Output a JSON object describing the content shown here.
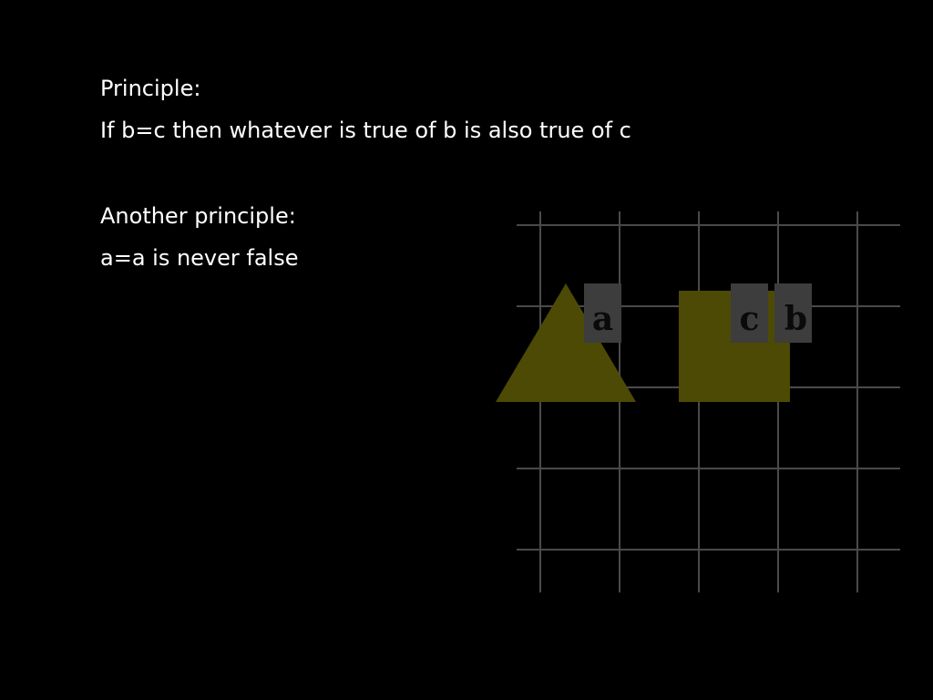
{
  "slide": {
    "lines": [
      "Principle:",
      "If b=c then whatever is true of b is also true of c",
      "Another principle:",
      "a=a is never false"
    ]
  },
  "diagram": {
    "grid_color": "#4a4a4a",
    "shape_color": "#4d4a06",
    "label_box_color": "#3d3d3d",
    "label_text_color": "#0a0a0a",
    "shapes": [
      "triangle",
      "square"
    ],
    "labels": [
      "a",
      "c",
      "b"
    ]
  }
}
